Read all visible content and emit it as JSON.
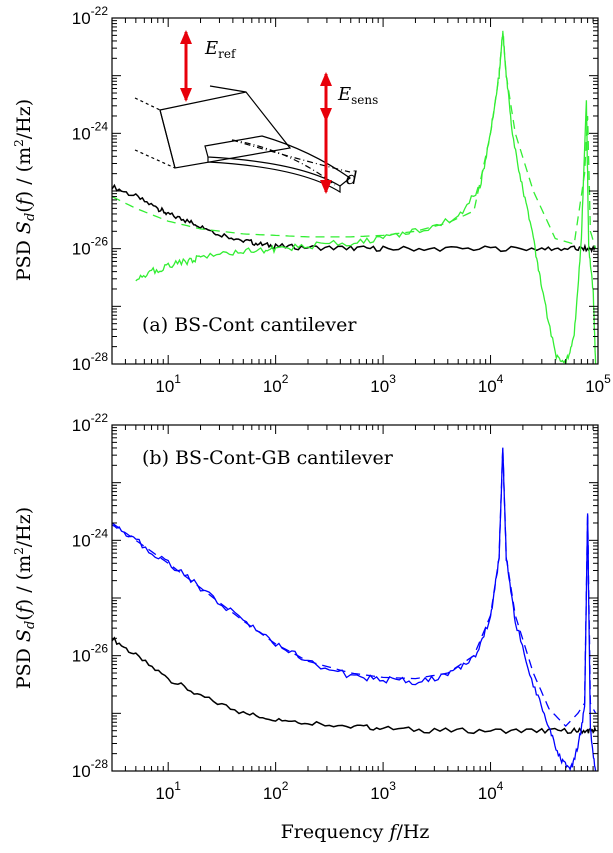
{
  "chart_data": [
    {
      "type": "line",
      "panel_label": "(a) BS-Cont cantilever",
      "ylabel": "PSD S_d(f) / (m²/Hz)",
      "xlabel": "",
      "xscale": "log",
      "yscale": "log",
      "xlim": [
        3,
        100000
      ],
      "ylim": [
        1e-28,
        1e-22
      ],
      "x_ticks": [
        10,
        100,
        1000,
        10000,
        100000
      ],
      "x_tick_labels": [
        {
          "base": "10",
          "exp": "1"
        },
        {
          "base": "10",
          "exp": "2"
        },
        {
          "base": "10",
          "exp": "3"
        },
        {
          "base": "10",
          "exp": "4"
        },
        {
          "base": "10",
          "exp": "5"
        }
      ],
      "y_ticks": [
        1e-28,
        1e-26,
        1e-24,
        1e-22
      ],
      "y_tick_labels": [
        {
          "base": "10",
          "exp": "-28"
        },
        {
          "base": "10",
          "exp": "-26"
        },
        {
          "base": "10",
          "exp": "-24"
        },
        {
          "base": "10",
          "exp": "-22"
        }
      ],
      "grid": false,
      "inset": {
        "labels": {
          "e_ref": "E",
          "e_ref_sub": "ref",
          "e_sens": "E",
          "e_sens_sub": "sens",
          "d": "d"
        },
        "arrow_color": "#e8000b"
      },
      "series": [
        {
          "color": "#000000",
          "style": "solid",
          "x": [
            3,
            5,
            8,
            10,
            15,
            20,
            30,
            50,
            70,
            100,
            200,
            500,
            1000,
            3000,
            10000,
            30000,
            60000,
            80000,
            95000
          ],
          "y": [
            1.2e-25,
            8e-26,
            5e-26,
            4e-26,
            3e-26,
            2.5e-26,
            1.8e-26,
            1.4e-26,
            1.2e-26,
            1.1e-26,
            1.05e-26,
            1.02e-26,
            1e-26,
            1e-26,
            1e-26,
            1e-26,
            1e-26,
            1e-26,
            1e-26
          ]
        },
        {
          "color": "#33ee33",
          "style": "dashed",
          "x": [
            3,
            5,
            10,
            20,
            50,
            100,
            200,
            500,
            1000,
            2000,
            4000,
            7000,
            10000,
            12000,
            13000,
            14000,
            17000,
            25000,
            40000,
            60000,
            75000,
            80000,
            85000,
            95000
          ],
          "y": [
            8e-26,
            5e-26,
            3e-26,
            2.2e-26,
            1.8e-26,
            1.7e-26,
            1.6e-26,
            1.6e-26,
            1.7e-26,
            2e-26,
            2.8e-26,
            4.5e-26,
            1e-24,
            1e-23,
            6e-23,
            1e-23,
            1e-24,
            1e-25,
            1.5e-26,
            1.2e-26,
            2e-25,
            2e-24,
            2e-26,
            1e-26
          ]
        },
        {
          "color": "#33ee33",
          "style": "solid",
          "x": [
            5,
            7,
            10,
            15,
            20,
            40,
            70,
            100,
            200,
            500,
            1000,
            2000,
            5000,
            8000,
            10000,
            12000,
            13000,
            14000,
            16000,
            20000,
            25000,
            30000,
            40000,
            50000,
            60000,
            70000,
            78000,
            82000,
            90000,
            95000
          ],
          "y": [
            3e-27,
            4e-27,
            5e-27,
            6e-27,
            7e-27,
            8.5e-27,
            9.5e-27,
            1e-26,
            1.1e-26,
            1.3e-26,
            1.5e-26,
            2e-26,
            3.5e-26,
            1.2e-25,
            1e-24,
            1e-23,
            6e-23,
            1e-23,
            1e-24,
            1e-25,
            1.5e-26,
            2e-27,
            1.5e-28,
            1e-28,
            3e-28,
            1.5e-26,
            4e-24,
            1e-26,
            2e-27,
            1e-28
          ]
        }
      ]
    },
    {
      "type": "line",
      "panel_label": "(b) BS-Cont-GB cantilever",
      "ylabel": "PSD S_d(f) / (m²/Hz)",
      "xlabel": "Frequency f/Hz",
      "xscale": "log",
      "yscale": "log",
      "xlim": [
        3,
        100000
      ],
      "ylim": [
        1e-28,
        1e-22
      ],
      "x_ticks": [
        10,
        100,
        1000,
        10000
      ],
      "x_tick_labels": [
        {
          "base": "10",
          "exp": "1"
        },
        {
          "base": "10",
          "exp": "2"
        },
        {
          "base": "10",
          "exp": "3"
        },
        {
          "base": "10",
          "exp": "4"
        }
      ],
      "y_ticks": [
        1e-28,
        1e-26,
        1e-24,
        1e-22
      ],
      "y_tick_labels": [
        {
          "base": "10",
          "exp": "-28"
        },
        {
          "base": "10",
          "exp": "-26"
        },
        {
          "base": "10",
          "exp": "-24"
        },
        {
          "base": "10",
          "exp": "-22"
        }
      ],
      "grid": false,
      "series": [
        {
          "color": "#000000",
          "style": "solid",
          "x": [
            3,
            5,
            10,
            20,
            50,
            100,
            200,
            500,
            1000,
            3000,
            10000,
            30000,
            60000,
            80000,
            95000
          ],
          "y": [
            2e-26,
            1e-26,
            4e-27,
            2e-27,
            1e-27,
            8e-28,
            7e-28,
            6e-28,
            5.5e-28,
            5e-28,
            5e-28,
            5e-28,
            5e-28,
            5e-28,
            5e-28
          ]
        },
        {
          "color": "#0000ff",
          "style": "dashed",
          "x": [
            3,
            5,
            10,
            20,
            50,
            100,
            200,
            500,
            1000,
            2000,
            4000,
            7000,
            10000,
            12000,
            13000,
            14000,
            17000,
            25000,
            35000,
            50000,
            65000,
            75000,
            80000,
            85000,
            95000
          ],
          "y": [
            2e-24,
            1e-24,
            4e-25,
            1.5e-25,
            4e-26,
            1.6e-26,
            8e-27,
            5e-27,
            4.2e-27,
            4e-27,
            5e-27,
            1e-26,
            5e-26,
            5e-25,
            4e-23,
            5e-25,
            5e-26,
            5e-27,
            1.2e-27,
            6e-28,
            1e-27,
            1.5e-27,
            3e-24,
            1.5e-27,
            1e-27
          ]
        },
        {
          "color": "#0000ff",
          "style": "solid",
          "x": [
            3,
            5,
            10,
            20,
            50,
            100,
            200,
            500,
            1000,
            2000,
            4000,
            7000,
            10000,
            12000,
            13000,
            14000,
            17000,
            25000,
            35000,
            45000,
            55000,
            65000,
            75000,
            80000,
            85000,
            95000
          ],
          "y": [
            2e-24,
            1e-24,
            4e-25,
            1.5e-25,
            4e-26,
            1.6e-26,
            8e-27,
            4.5e-27,
            3.8e-27,
            3.6e-27,
            4.5e-27,
            9e-27,
            4.5e-26,
            5e-25,
            4e-23,
            5e-25,
            4e-26,
            3e-27,
            6e-28,
            1.5e-28,
            1e-28,
            2.5e-28,
            1.2e-27,
            3e-24,
            5e-28,
            1e-28
          ]
        }
      ]
    }
  ]
}
